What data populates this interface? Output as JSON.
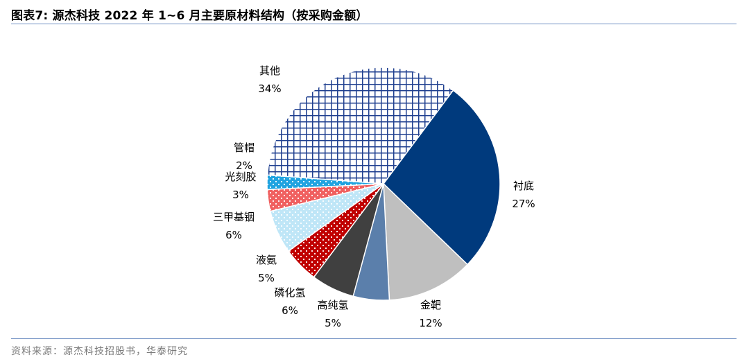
{
  "header": {
    "title": "图表7:  源杰科技 2022 年 1~6 月主要原材料结构（按采购金额）"
  },
  "footer": {
    "source": "资料来源：源杰科技招股书，华泰研究"
  },
  "chart_data": {
    "type": "pie",
    "title": "图表7:  源杰科技 2022 年 1~6 月主要原材料结构（按采购金额）",
    "unit": "%",
    "slices": [
      {
        "name": "衬底",
        "value": 27,
        "label": "27%",
        "color": "#003a7d",
        "pattern": "solid"
      },
      {
        "name": "金靶",
        "value": 12,
        "label": "12%",
        "color": "#bfbfbf",
        "pattern": "solid"
      },
      {
        "name": "高纯氢",
        "value": 5,
        "label": "5%",
        "color": "#5b7fab",
        "pattern": "solid"
      },
      {
        "name": "磷化氢",
        "value": 6,
        "label": "6%",
        "color": "#404040",
        "pattern": "solid"
      },
      {
        "name": "液氨",
        "value": 5,
        "label": "5%",
        "color": "#c00000",
        "pattern": "white-dots"
      },
      {
        "name": "三甲基铟",
        "value": 6,
        "label": "6%",
        "color": "#bfe6f7",
        "pattern": "white-dots"
      },
      {
        "name": "光刻胶",
        "value": 3,
        "label": "3%",
        "color": "#f06060",
        "pattern": "white-dots"
      },
      {
        "name": "管帽",
        "value": 2,
        "label": "2%",
        "color": "#1fa3e0",
        "pattern": "white-dots"
      },
      {
        "name": "其他",
        "value": 34,
        "label": "34%",
        "color": "#1f3f8f",
        "pattern": "crosshatch"
      }
    ]
  }
}
